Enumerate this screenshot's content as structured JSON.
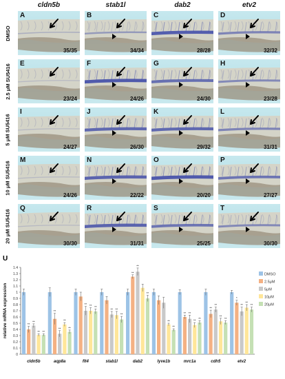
{
  "genes": [
    "cldn5b",
    "stab1l",
    "dab2",
    "etv2"
  ],
  "conditions": [
    "DMSO",
    "2.5 μM SU5416",
    "5 μM SU5416",
    "10 μM SU5416",
    "20 μM SU5416"
  ],
  "panels": [
    {
      "letter": "A",
      "count": "35/35",
      "vessel": 0.15,
      "arrowhead": false
    },
    {
      "letter": "B",
      "count": "34/34",
      "vessel": 0.35,
      "arrowhead": true
    },
    {
      "letter": "C",
      "count": "28/28",
      "vessel": 0.9,
      "arrowhead": true
    },
    {
      "letter": "D",
      "count": "32/32",
      "vessel": 0.55,
      "arrowhead": true
    },
    {
      "letter": "E",
      "count": "23/24",
      "vessel": 0.05,
      "arrowhead": false
    },
    {
      "letter": "F",
      "count": "24/26",
      "vessel": 0.95,
      "arrowhead": true
    },
    {
      "letter": "G",
      "count": "24/30",
      "vessel": 0.75,
      "arrowhead": true
    },
    {
      "letter": "H",
      "count": "23/28",
      "vessel": 0.5,
      "arrowhead": true
    },
    {
      "letter": "I",
      "count": "24/27",
      "vessel": 0.05,
      "arrowhead": false
    },
    {
      "letter": "J",
      "count": "26/30",
      "vessel": 0.8,
      "arrowhead": true
    },
    {
      "letter": "K",
      "count": "29/32",
      "vessel": 0.8,
      "arrowhead": true
    },
    {
      "letter": "L",
      "count": "31/31",
      "vessel": 0.55,
      "arrowhead": true
    },
    {
      "letter": "M",
      "count": "24/26",
      "vessel": 0.05,
      "arrowhead": false
    },
    {
      "letter": "N",
      "count": "22/22",
      "vessel": 0.85,
      "arrowhead": true
    },
    {
      "letter": "O",
      "count": "20/20",
      "vessel": 0.95,
      "arrowhead": true
    },
    {
      "letter": "P",
      "count": "27/27",
      "vessel": 0.7,
      "arrowhead": true
    },
    {
      "letter": "Q",
      "count": "30/30",
      "vessel": 0.05,
      "arrowhead": false
    },
    {
      "letter": "R",
      "count": "31/31",
      "vessel": 0.85,
      "arrowhead": true
    },
    {
      "letter": "S",
      "count": "25/25",
      "vessel": 0.7,
      "arrowhead": true
    },
    {
      "letter": "T",
      "count": "30/30",
      "vessel": 0.5,
      "arrowhead": true
    }
  ],
  "colors": {
    "panel_bg": "#bfe4ea",
    "stain": "#3a46a8",
    "yolk": "#8a8070"
  },
  "chart_data": {
    "type": "bar",
    "panel_label": "U",
    "title": "",
    "xlabel": "",
    "ylabel": "relative mRNA expression",
    "ylim": [
      0,
      1.4
    ],
    "yticks": [
      "0",
      "0.1",
      "0.2",
      "0.3",
      "0.4",
      "0.5",
      "0.6",
      "0.7",
      "0.8",
      "0.9",
      "1",
      "1.1",
      "1.2",
      "1.3",
      "1.4"
    ],
    "categories": [
      "cldn5b",
      "aqp8a",
      "flt4",
      "stab1l",
      "dab2",
      "lyve1b",
      "mrc1a",
      "cdh5",
      "etv2"
    ],
    "series": [
      {
        "name": "DMSO",
        "color": "#9dc3e6",
        "values": [
          1.0,
          1.0,
          1.0,
          1.0,
          1.0,
          1.0,
          1.0,
          1.0,
          1.0
        ]
      },
      {
        "name": "2.5μM",
        "color": "#f4b183",
        "values": [
          0.4,
          0.57,
          0.93,
          0.87,
          1.25,
          0.87,
          0.6,
          0.65,
          0.83
        ]
      },
      {
        "name": "5μM",
        "color": "#c9c9c9",
        "values": [
          0.46,
          0.33,
          0.7,
          0.64,
          1.33,
          0.83,
          0.57,
          0.72,
          0.69
        ]
      },
      {
        "name": "10μM",
        "color": "#ffe699",
        "values": [
          0.31,
          0.48,
          0.7,
          0.63,
          1.07,
          0.48,
          0.47,
          0.53,
          0.75
        ]
      },
      {
        "name": "20μM",
        "color": "#c5e0b4",
        "values": [
          0.31,
          0.36,
          0.69,
          0.56,
          0.9,
          0.39,
          0.51,
          0.51,
          0.72
        ]
      }
    ],
    "errors": [
      [
        0.05,
        0.07,
        0.05,
        0.05,
        0.05,
        0.05,
        0.04,
        0.05,
        0.03
      ],
      [
        0.05,
        0.09,
        0.07,
        0.06,
        0.03,
        0.07,
        0.03,
        0.06,
        0.04
      ],
      [
        0.03,
        0.05,
        0.07,
        0.05,
        0.06,
        0.09,
        0.06,
        0.04,
        0.07
      ],
      [
        0.02,
        0.03,
        0.05,
        0.06,
        0.06,
        0.02,
        0.04,
        0.05,
        0.05
      ],
      [
        0.02,
        0.03,
        0.04,
        0.05,
        0.05,
        0.02,
        0.03,
        0.03,
        0.04
      ]
    ],
    "significance": [
      [
        "",
        "",
        "",
        "",
        "",
        "",
        "",
        "",
        ""
      ],
      [
        "**",
        "**",
        "",
        "",
        "**",
        "",
        "**",
        "**",
        "*"
      ],
      [
        "**",
        "**",
        "**",
        "**",
        "**",
        "",
        "**",
        "**",
        "**"
      ],
      [
        "**",
        "**",
        "**",
        "**",
        "",
        "**",
        "**",
        "**",
        "**"
      ],
      [
        "**",
        "**",
        "**",
        "**",
        "**",
        "**",
        "**",
        "**",
        "**"
      ]
    ],
    "legend_position": "right",
    "grid": false
  }
}
